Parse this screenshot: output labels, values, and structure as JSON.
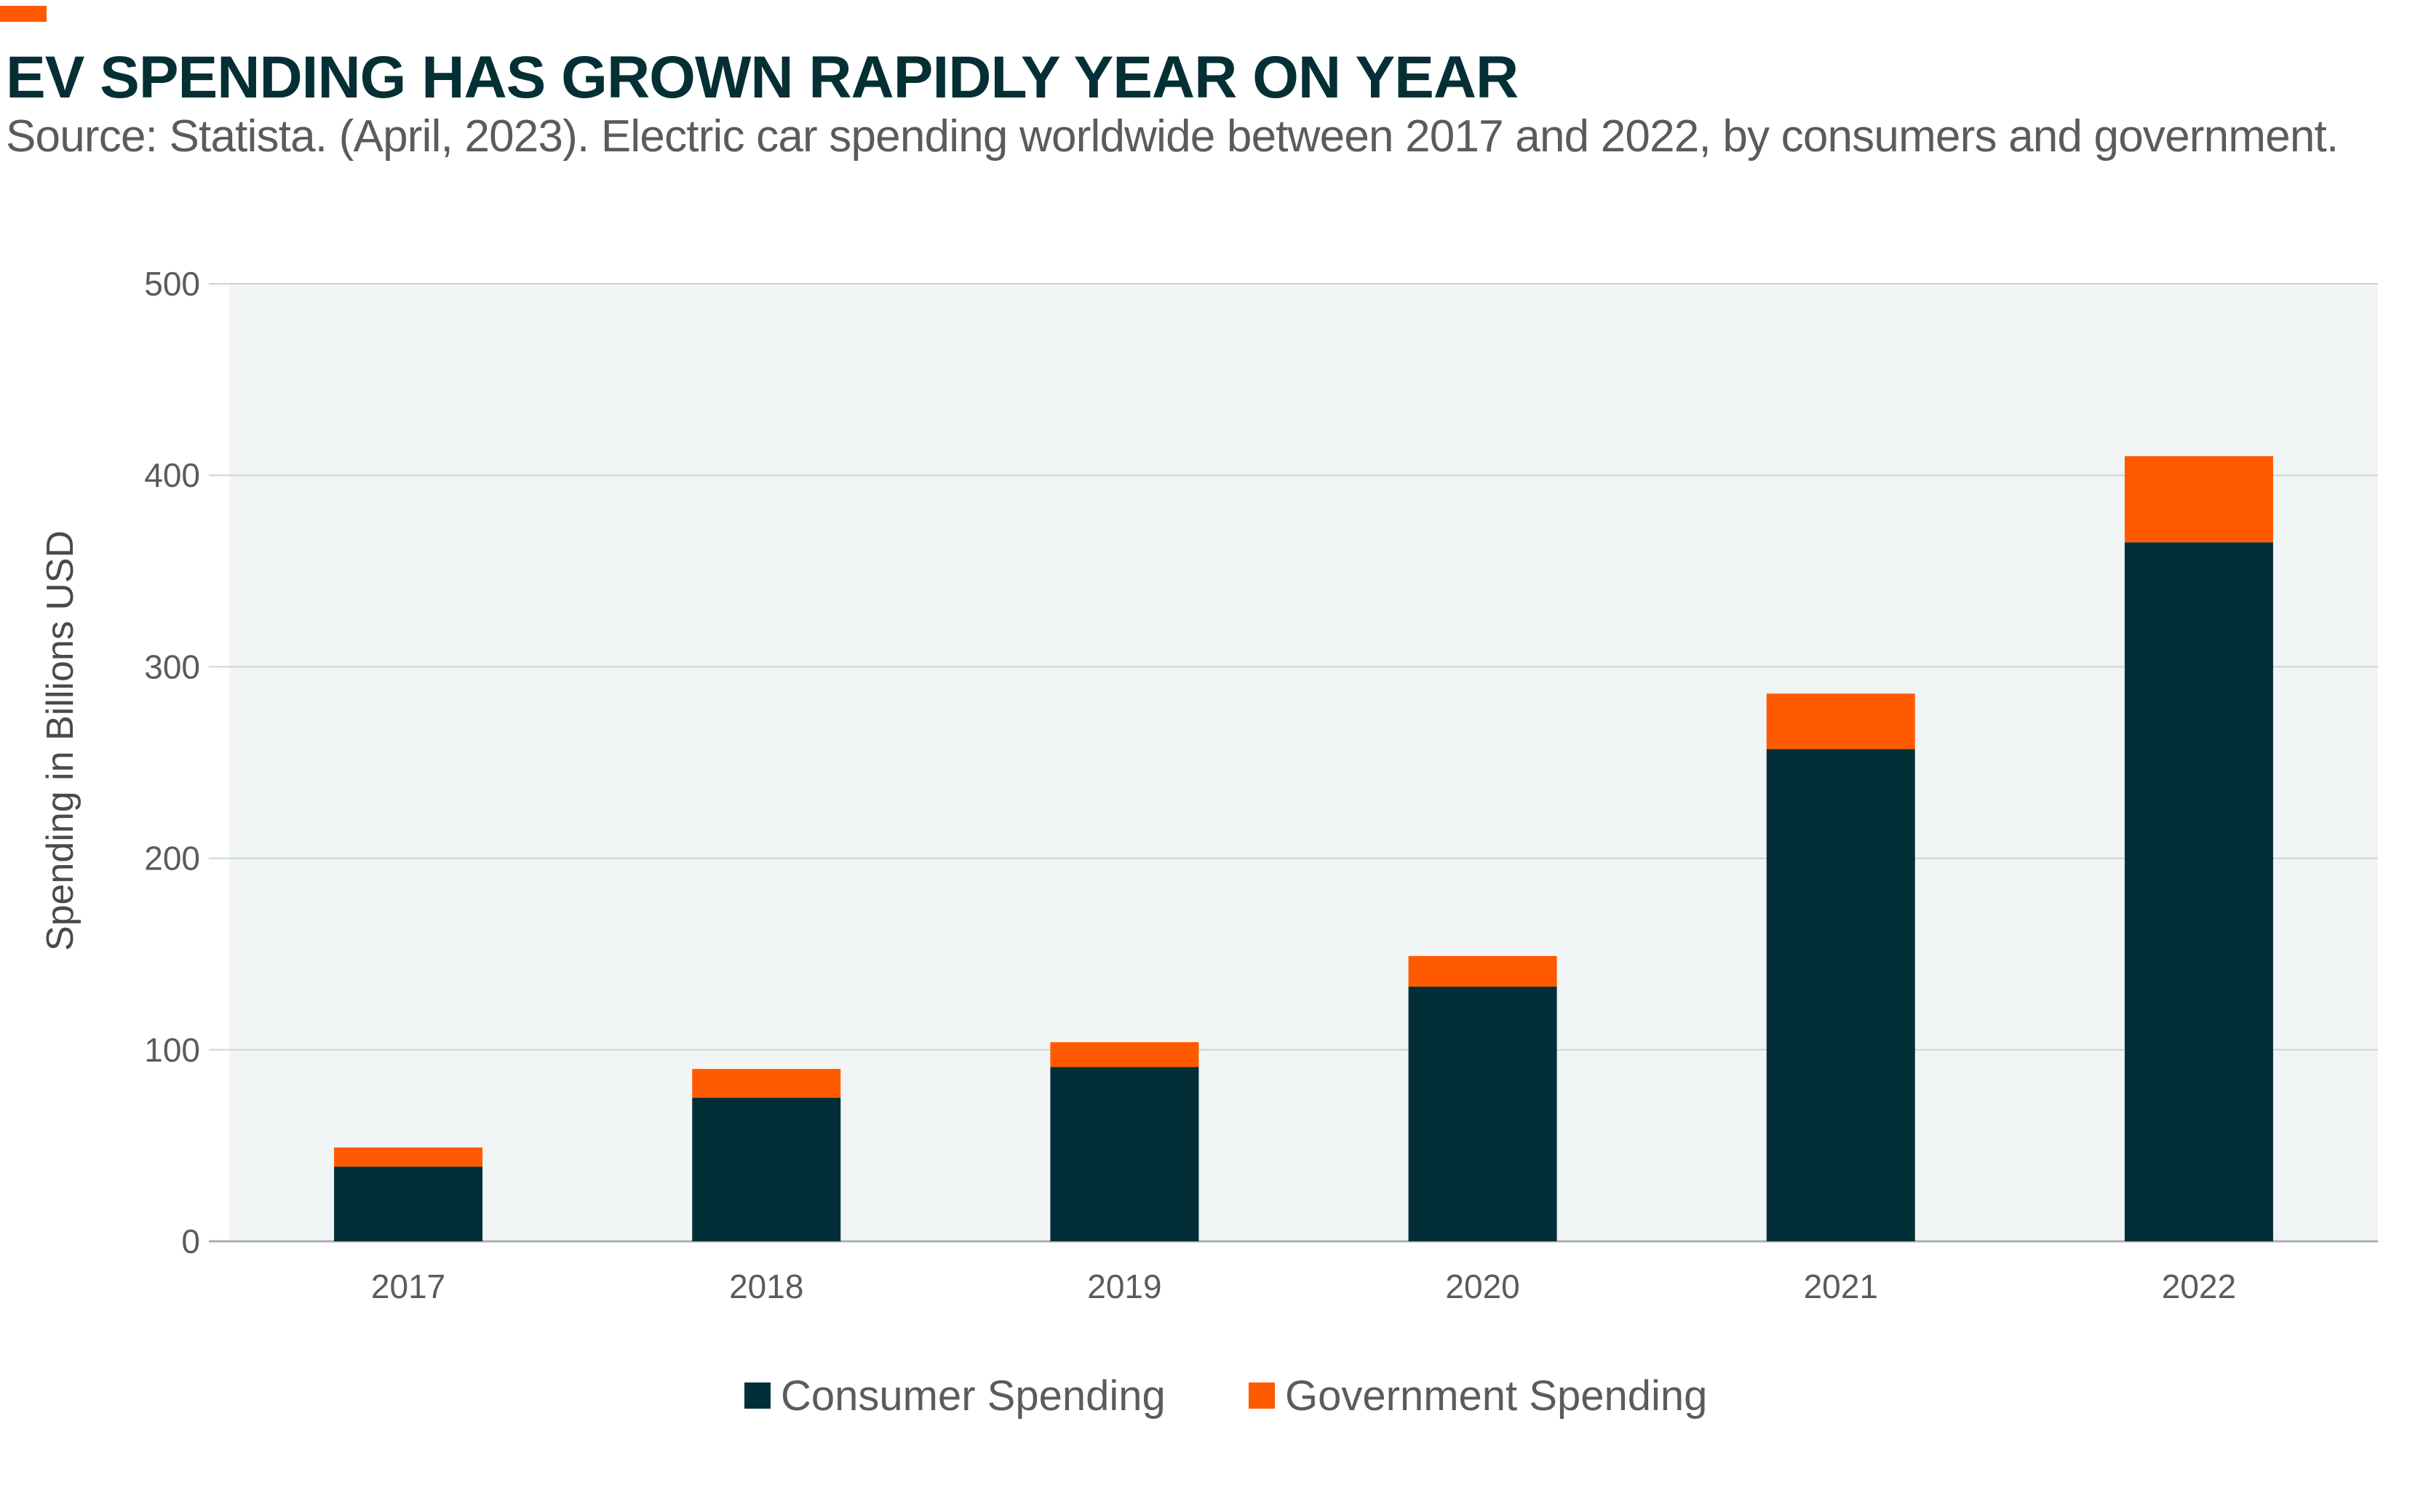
{
  "header": {
    "title": "EV SPENDING HAS GROWN RAPIDLY YEAR ON YEAR",
    "subtitle": "Source: Statista. (April, 2023). Electric car spending worldwide between 2017 and 2022, by consumers and government."
  },
  "colors": {
    "accent": "#ff5a00",
    "consumer": "#022f37",
    "government": "#ff5a00",
    "plot_bg": "#f2f5f6",
    "grid": "#d0d4d6"
  },
  "chart_data": {
    "type": "bar",
    "stacked": true,
    "title": "EV SPENDING HAS GROWN RAPIDLY YEAR ON YEAR",
    "xlabel": "",
    "ylabel": "Spending in Billions USD",
    "ylim": [
      0,
      500
    ],
    "yticks": [
      0,
      100,
      200,
      300,
      400,
      500
    ],
    "grid": true,
    "legend_position": "bottom-center",
    "categories": [
      "2017",
      "2018",
      "2019",
      "2020",
      "2021",
      "2022"
    ],
    "series": [
      {
        "name": "Consumer Spending",
        "values": [
          39,
          75,
          91,
          133,
          257,
          365
        ]
      },
      {
        "name": "Government Spending",
        "values": [
          10,
          15,
          13,
          16,
          29,
          45
        ]
      }
    ]
  }
}
